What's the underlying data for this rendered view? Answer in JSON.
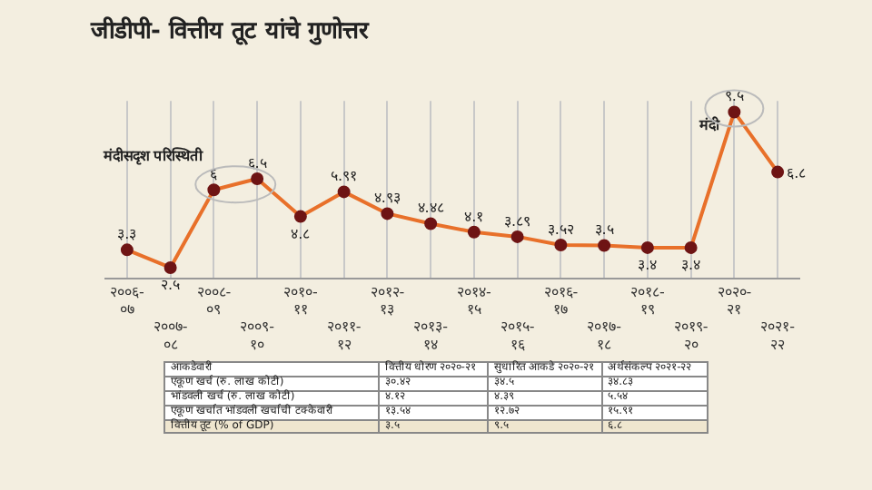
{
  "chart_data": {
    "type": "line",
    "title": "जीडीपी- वित्तीय तूट यांचे गुणोत्तर",
    "categories": [
      "२००६-०७",
      "२००७-०८",
      "२००८-०९",
      "२००९-१०",
      "२०१०-११",
      "२०११-१२",
      "२०१२-१३",
      "२०१३-१४",
      "२०१४-१५",
      "२०१५-१६",
      "२०१६-१७",
      "२०१७-१८",
      "२०१८-१९",
      "२०१९-२०",
      "२०२०-२१",
      "२०२१-२२"
    ],
    "series": [
      {
        "color": "#e8702a",
        "values": [
          3.3,
          2.5,
          6,
          6.5,
          4.8,
          5.91,
          4.93,
          4.48,
          4.1,
          3.89,
          3.52,
          3.5,
          3.4,
          3.4,
          9.5,
          6.8
        ],
        "value_labels": [
          "३.३",
          "२.५",
          "६",
          "६.५",
          "४.८",
          "५.९१",
          "४.९३",
          "४.४८",
          "४.१",
          "३.८९",
          "३.५२",
          "३.५",
          "३.४",
          "३.४",
          "९.५",
          "६.८"
        ]
      }
    ],
    "marker": "circle",
    "grid": "x",
    "legend": false,
    "annotations": [
      {
        "text": "मंदीसदृश परिस्थिती",
        "x": "२००८-०९",
        "y": 6
      },
      {
        "text": "मंदी",
        "x": "२०२०-२१",
        "y": 9.5
      },
      "आकडेवारी",
      "वित्तीय धोरण २०२०-२१",
      "सुधारित आकडे २०२०-२१",
      "अर्थसंकल्प २०२१-२२",
      "एकूण खर्च (रु. लाख कोटी)",
      "३०.४२",
      "३४.५",
      "३४.८३",
      "भांडवली खर्च (रु. लाख कोटी)",
      "४.१२",
      "४.३९",
      "५.५४",
      "एकूण खर्चात भांडवली खर्चाची टक्केवारी",
      "१३.५४",
      "१२.७२",
      "१५.९१",
      "वित्तीय तूट (% of GDP)",
      "३.५",
      "९.५",
      "६.८"
    ]
  }
}
